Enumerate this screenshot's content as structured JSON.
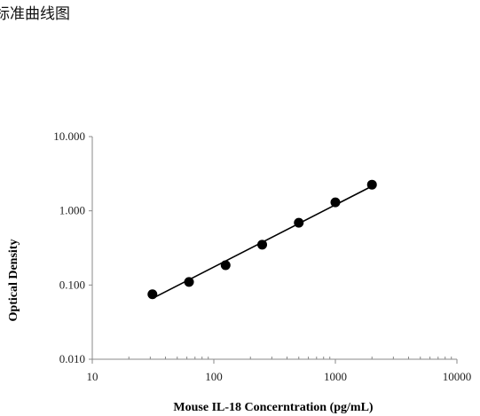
{
  "caption": "标准曲线图",
  "chart_data": {
    "type": "scatter",
    "title": "",
    "xlabel": "Mouse IL-18 Concerntration (pg/mL)",
    "ylabel": "Optical Density",
    "x_scale": "log",
    "y_scale": "log",
    "xlim": [
      10,
      10000
    ],
    "ylim": [
      0.01,
      10
    ],
    "x_ticks": [
      "10",
      "100",
      "1000",
      "10000"
    ],
    "y_ticks": [
      "0.010",
      "0.100",
      "1.000",
      "10.000"
    ],
    "grid": false,
    "legend": "none",
    "series": [
      {
        "x": [
          31.25,
          62.5,
          125,
          250,
          500,
          1000,
          2000
        ],
        "y": [
          0.075,
          0.11,
          0.185,
          0.35,
          0.69,
          1.3,
          2.25
        ]
      }
    ],
    "fit_line": {
      "x": [
        31.25,
        2000
      ],
      "y": [
        0.066,
        2.15
      ]
    }
  }
}
